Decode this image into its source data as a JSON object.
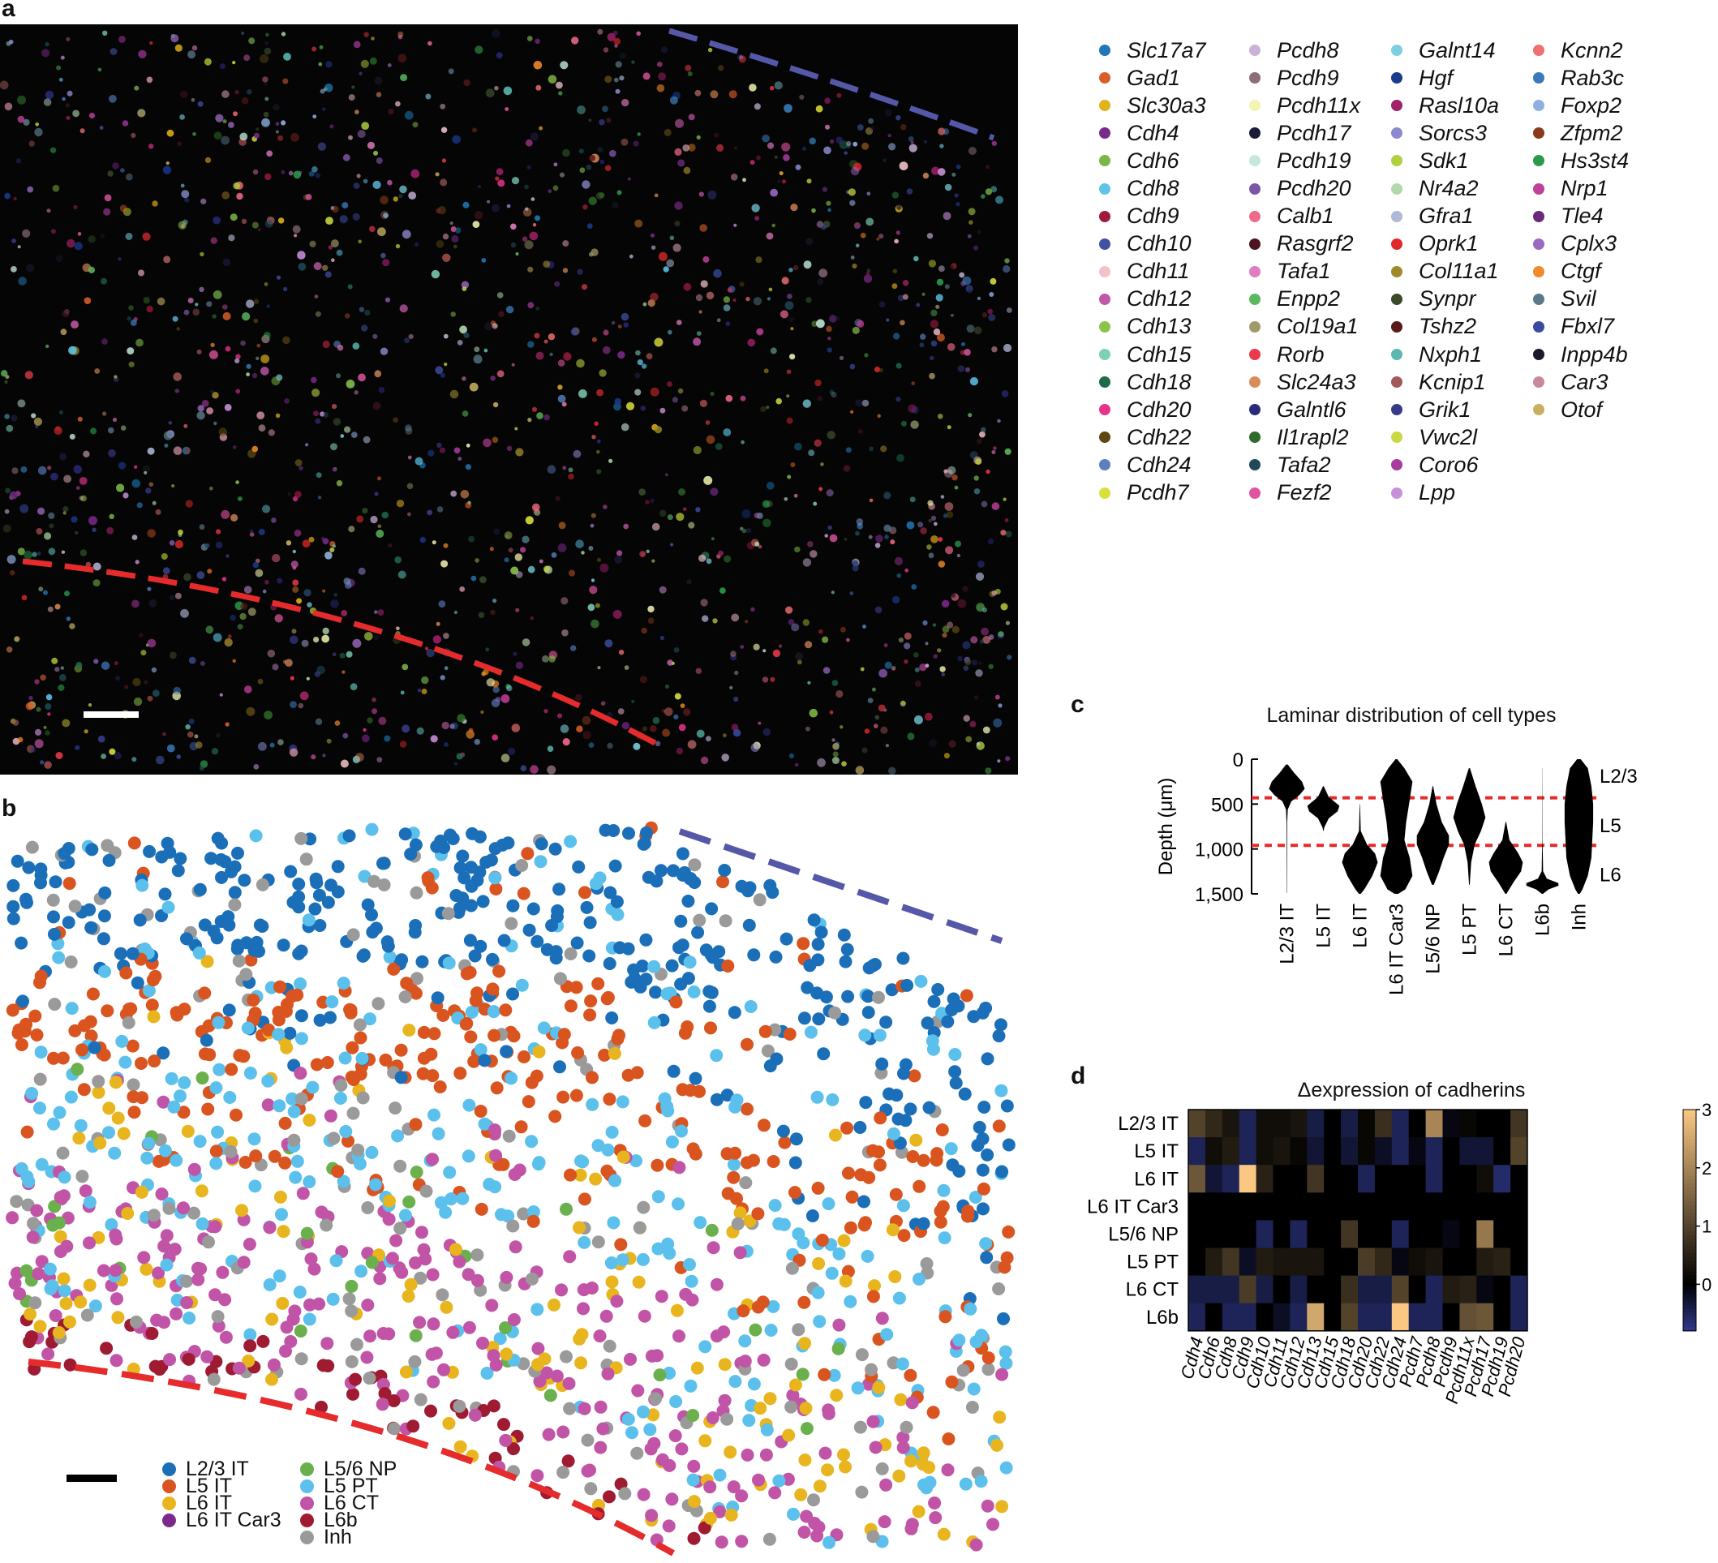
{
  "panels": {
    "a": "a",
    "b": "b",
    "c": "c",
    "d": "d"
  },
  "colors": {
    "blue_line": "#5558a8",
    "red_line": "#e52b2b"
  },
  "gene_legend": [
    [
      {
        "name": "Slc17a7",
        "color": "#1f77b4"
      },
      {
        "name": "Gad1",
        "color": "#d95f28"
      },
      {
        "name": "Slc30a3",
        "color": "#e2b21c"
      },
      {
        "name": "Cdh4",
        "color": "#7b2a8c"
      },
      {
        "name": "Cdh6",
        "color": "#7ab648"
      },
      {
        "name": "Cdh8",
        "color": "#5ec4e8"
      },
      {
        "name": "Cdh9",
        "color": "#9e1b3c"
      },
      {
        "name": "Cdh10",
        "color": "#3f51a0"
      },
      {
        "name": "Cdh11",
        "color": "#f4c1c8"
      },
      {
        "name": "Cdh12",
        "color": "#c058a8"
      },
      {
        "name": "Cdh13",
        "color": "#8bc44a"
      },
      {
        "name": "Cdh15",
        "color": "#7fcfb8"
      },
      {
        "name": "Cdh18",
        "color": "#1f6b4a"
      },
      {
        "name": "Cdh20",
        "color": "#e8338e"
      },
      {
        "name": "Cdh22",
        "color": "#5e4713"
      },
      {
        "name": "Cdh24",
        "color": "#5b7fbf"
      },
      {
        "name": "Pcdh7",
        "color": "#d9e03a"
      }
    ],
    [
      {
        "name": "Pcdh8",
        "color": "#c9b2d6"
      },
      {
        "name": "Pcdh9",
        "color": "#8c6d7a"
      },
      {
        "name": "Pcdh11x",
        "color": "#f2f5b0"
      },
      {
        "name": "Pcdh17",
        "color": "#1a1a3a"
      },
      {
        "name": "Pcdh19",
        "color": "#c5e8d8"
      },
      {
        "name": "Pcdh20",
        "color": "#7c54a8"
      },
      {
        "name": "Calb1",
        "color": "#f06a8a"
      },
      {
        "name": "Rasgrf2",
        "color": "#4a1520"
      },
      {
        "name": "Tafa1",
        "color": "#e07cc0"
      },
      {
        "name": "Enpp2",
        "color": "#5cb85c"
      },
      {
        "name": "Col19a1",
        "color": "#a09a6a"
      },
      {
        "name": "Rorb",
        "color": "#e83a4a"
      },
      {
        "name": "Slc24a3",
        "color": "#d98c5a"
      },
      {
        "name": "Galntl6",
        "color": "#2a2a7a"
      },
      {
        "name": "Il1rapl2",
        "color": "#2f6b2a"
      },
      {
        "name": "Tafa2",
        "color": "#1f4a5a"
      },
      {
        "name": "Fezf2",
        "color": "#e055a0"
      }
    ],
    [
      {
        "name": "Galnt14",
        "color": "#7ad0e0"
      },
      {
        "name": "Hgf",
        "color": "#1a3a8c"
      },
      {
        "name": "Rasl10a",
        "color": "#a0206a"
      },
      {
        "name": "Sorcs3",
        "color": "#8a8ad0"
      },
      {
        "name": "Sdk1",
        "color": "#b0d040"
      },
      {
        "name": "Nr4a2",
        "color": "#b0d8a8"
      },
      {
        "name": "Gfra1",
        "color": "#b0b8d8"
      },
      {
        "name": "Oprk1",
        "color": "#e02a2a"
      },
      {
        "name": "Col11a1",
        "color": "#a08a2a"
      },
      {
        "name": "Synpr",
        "color": "#3a4a2a"
      },
      {
        "name": "Tshz2",
        "color": "#5a1a1a"
      },
      {
        "name": "Nxph1",
        "color": "#5ab8b0"
      },
      {
        "name": "Kcnip1",
        "color": "#a05a5a"
      },
      {
        "name": "Grik1",
        "color": "#3a3a8a"
      },
      {
        "name": "Vwc2l",
        "color": "#c8d840"
      },
      {
        "name": "Coro6",
        "color": "#a83aa0"
      },
      {
        "name": "Lpp",
        "color": "#c890d8"
      }
    ],
    [
      {
        "name": "Kcnn2",
        "color": "#f07070"
      },
      {
        "name": "Rab3c",
        "color": "#3a7ab8"
      },
      {
        "name": "Foxp2",
        "color": "#90b0e0"
      },
      {
        "name": "Zfpm2",
        "color": "#8a3a1a"
      },
      {
        "name": "Hs3st4",
        "color": "#2a9a4a"
      },
      {
        "name": "Nrp1",
        "color": "#c0409a"
      },
      {
        "name": "Tle4",
        "color": "#6a2a7a"
      },
      {
        "name": "Cplx3",
        "color": "#9a6ac0"
      },
      {
        "name": "Ctgf",
        "color": "#f08a2a"
      },
      {
        "name": "Svil",
        "color": "#5a7a8a"
      },
      {
        "name": "Fbxl7",
        "color": "#3a4aa0"
      },
      {
        "name": "Inpp4b",
        "color": "#1a1a2a"
      },
      {
        "name": "Car3",
        "color": "#c88a9a"
      },
      {
        "name": "Otof",
        "color": "#c8b060"
      }
    ]
  ],
  "celltype_legend": [
    {
      "name": "L2/3 IT",
      "color": "#1a6fb8"
    },
    {
      "name": "L5 IT",
      "color": "#d9541f"
    },
    {
      "name": "L6 IT",
      "color": "#e8b51e"
    },
    {
      "name": "L6 IT Car3",
      "color": "#7b2a8c"
    },
    {
      "name": "L5/6 NP",
      "color": "#6ab04c"
    },
    {
      "name": "L5 PT",
      "color": "#5bc0eb"
    },
    {
      "name": "L6 CT",
      "color": "#c154a6"
    },
    {
      "name": "L6b",
      "color": "#9e1b32"
    },
    {
      "name": "Inh",
      "color": "#9a9a9a"
    }
  ],
  "chart_data": [
    {
      "type": "violin",
      "title": "Laminar distribution of cell types",
      "ylabel": "Depth (μm)",
      "ylim": [
        0,
        1500
      ],
      "yticks": [
        "0",
        "500",
        "1,000",
        "1,500"
      ],
      "categories": [
        "L2/3 IT",
        "L5 IT",
        "L6 IT",
        "L6 IT Car3",
        "L5/6 NP",
        "L5 PT",
        "L6 CT",
        "L6b",
        "Inh"
      ],
      "layer_boundaries": [
        430,
        960
      ],
      "layer_labels": [
        {
          "label": "L2/3",
          "depth": 180
        },
        {
          "label": "L5",
          "depth": 730
        },
        {
          "label": "L6",
          "depth": 1280
        }
      ],
      "violins": [
        {
          "name": "L2/3 IT",
          "min": 60,
          "max": 1490,
          "profile": [
            [
              60,
              0.05
            ],
            [
              150,
              0.4
            ],
            [
              250,
              0.85
            ],
            [
              330,
              1.0
            ],
            [
              400,
              0.7
            ],
            [
              470,
              0.25
            ],
            [
              560,
              0.05
            ],
            [
              700,
              0.02
            ],
            [
              1490,
              0.01
            ]
          ]
        },
        {
          "name": "L5 IT",
          "min": 300,
          "max": 800,
          "profile": [
            [
              300,
              0.02
            ],
            [
              420,
              0.3
            ],
            [
              520,
              0.9
            ],
            [
              580,
              0.8
            ],
            [
              660,
              0.3
            ],
            [
              760,
              0.05
            ],
            [
              800,
              0.01
            ]
          ]
        },
        {
          "name": "L6 IT",
          "min": 500,
          "max": 1500,
          "profile": [
            [
              500,
              0.01
            ],
            [
              800,
              0.05
            ],
            [
              950,
              0.4
            ],
            [
              1050,
              0.85
            ],
            [
              1150,
              1.0
            ],
            [
              1300,
              0.7
            ],
            [
              1450,
              0.25
            ],
            [
              1500,
              0.05
            ]
          ]
        },
        {
          "name": "L6 IT Car3",
          "min": 0,
          "max": 1500,
          "profile": [
            [
              0,
              0.05
            ],
            [
              100,
              0.45
            ],
            [
              250,
              0.9
            ],
            [
              450,
              0.75
            ],
            [
              700,
              0.55
            ],
            [
              900,
              0.45
            ],
            [
              1100,
              0.75
            ],
            [
              1300,
              0.9
            ],
            [
              1450,
              0.5
            ],
            [
              1500,
              0.1
            ]
          ]
        },
        {
          "name": "L5/6 NP",
          "min": 300,
          "max": 1400,
          "profile": [
            [
              300,
              0.02
            ],
            [
              500,
              0.2
            ],
            [
              700,
              0.5
            ],
            [
              850,
              0.9
            ],
            [
              950,
              0.9
            ],
            [
              1100,
              0.6
            ],
            [
              1250,
              0.35
            ],
            [
              1400,
              0.05
            ]
          ]
        },
        {
          "name": "L5 PT",
          "min": 100,
          "max": 1400,
          "profile": [
            [
              100,
              0.03
            ],
            [
              300,
              0.35
            ],
            [
              500,
              0.7
            ],
            [
              650,
              0.9
            ],
            [
              800,
              0.65
            ],
            [
              950,
              0.3
            ],
            [
              1150,
              0.1
            ],
            [
              1400,
              0.02
            ]
          ]
        },
        {
          "name": "L6 CT",
          "min": 700,
          "max": 1500,
          "profile": [
            [
              700,
              0.02
            ],
            [
              900,
              0.2
            ],
            [
              1050,
              0.7
            ],
            [
              1150,
              0.95
            ],
            [
              1250,
              0.85
            ],
            [
              1380,
              0.4
            ],
            [
              1500,
              0.03
            ]
          ]
        },
        {
          "name": "L6b",
          "min": 100,
          "max": 1500,
          "profile": [
            [
              100,
              0.005
            ],
            [
              900,
              0.01
            ],
            [
              1250,
              0.04
            ],
            [
              1330,
              0.25
            ],
            [
              1380,
              0.9
            ],
            [
              1410,
              0.9
            ],
            [
              1450,
              0.35
            ],
            [
              1500,
              0.03
            ]
          ]
        },
        {
          "name": "Inh",
          "min": 0,
          "max": 1500,
          "profile": [
            [
              0,
              0.1
            ],
            [
              100,
              0.5
            ],
            [
              300,
              0.7
            ],
            [
              500,
              0.8
            ],
            [
              700,
              0.8
            ],
            [
              900,
              0.75
            ],
            [
              1100,
              0.7
            ],
            [
              1300,
              0.5
            ],
            [
              1450,
              0.2
            ],
            [
              1500,
              0.05
            ]
          ]
        }
      ]
    },
    {
      "type": "heatmap",
      "title": "Δexpression of cadherins",
      "rows": [
        "L2/3 IT",
        "L5 IT",
        "L6 IT",
        "L6 IT Car3",
        "L5/6 NP",
        "L5 PT",
        "L6 CT",
        "L6b"
      ],
      "columns": [
        "Cdh4",
        "Cdh6",
        "Cdh8",
        "Cdh9",
        "Cdh10",
        "Cdh11",
        "Cdh12",
        "Cdh13",
        "Cdh15",
        "Cdh18",
        "Cdh20",
        "Cdh22",
        "Cdh24",
        "Pcdh7",
        "Pcdh8",
        "Pcdh9",
        "Pcdh11x",
        "Pcdh17",
        "Pcdh19",
        "Pcdh20"
      ],
      "colorbar": {
        "min": -0.8,
        "max": 3,
        "ticks": [
          "0",
          "1",
          "2",
          "3"
        ]
      },
      "values": [
        [
          1.0,
          0.6,
          0.3,
          -0.5,
          0.2,
          0.2,
          0.3,
          -0.4,
          0,
          -0.4,
          0.1,
          0.7,
          -0.5,
          0,
          2.0,
          -0.1,
          0.1,
          0,
          0,
          0.8
        ],
        [
          -0.5,
          0.2,
          0.4,
          -0.5,
          0.2,
          0.3,
          0.1,
          -0.3,
          0,
          -0.3,
          0.1,
          -0.2,
          -0.5,
          -0.1,
          -0.5,
          0,
          -0.3,
          -0.3,
          0,
          1.0
        ],
        [
          1.3,
          -0.3,
          -0.5,
          3.0,
          0.5,
          0,
          0,
          0.8,
          0,
          0,
          -0.5,
          0,
          0,
          0,
          -0.5,
          0,
          0,
          0.2,
          -0.6,
          0
        ],
        [
          0,
          0,
          0,
          0,
          0,
          0,
          0,
          0,
          0,
          0,
          0,
          0,
          0,
          0,
          0,
          0,
          0,
          0,
          0,
          0
        ],
        [
          0,
          0,
          0,
          0,
          -0.5,
          0,
          -0.5,
          0,
          0,
          0.8,
          0,
          0,
          -0.5,
          0,
          0,
          -0.1,
          0,
          1.8,
          0,
          0
        ],
        [
          0,
          0.4,
          0.8,
          -0.2,
          0.4,
          0.3,
          0.3,
          0.3,
          0,
          0,
          0.9,
          0.6,
          -0.1,
          0.2,
          0.3,
          0,
          0,
          0.4,
          0.5,
          0
        ],
        [
          -0.4,
          -0.4,
          -0.4,
          0.9,
          -0.4,
          0,
          -0.4,
          0,
          0,
          0.7,
          -0.4,
          -0.4,
          1.0,
          0,
          -0.5,
          0.4,
          0.5,
          -0.1,
          0,
          -0.5
        ],
        [
          -0.5,
          0,
          -0.5,
          -0.5,
          0,
          -0.2,
          -0.5,
          2.5,
          0,
          1.0,
          -0.5,
          -0.5,
          3.0,
          -0.5,
          -0.5,
          0,
          1.2,
          1.3,
          0,
          -0.5
        ]
      ]
    }
  ]
}
